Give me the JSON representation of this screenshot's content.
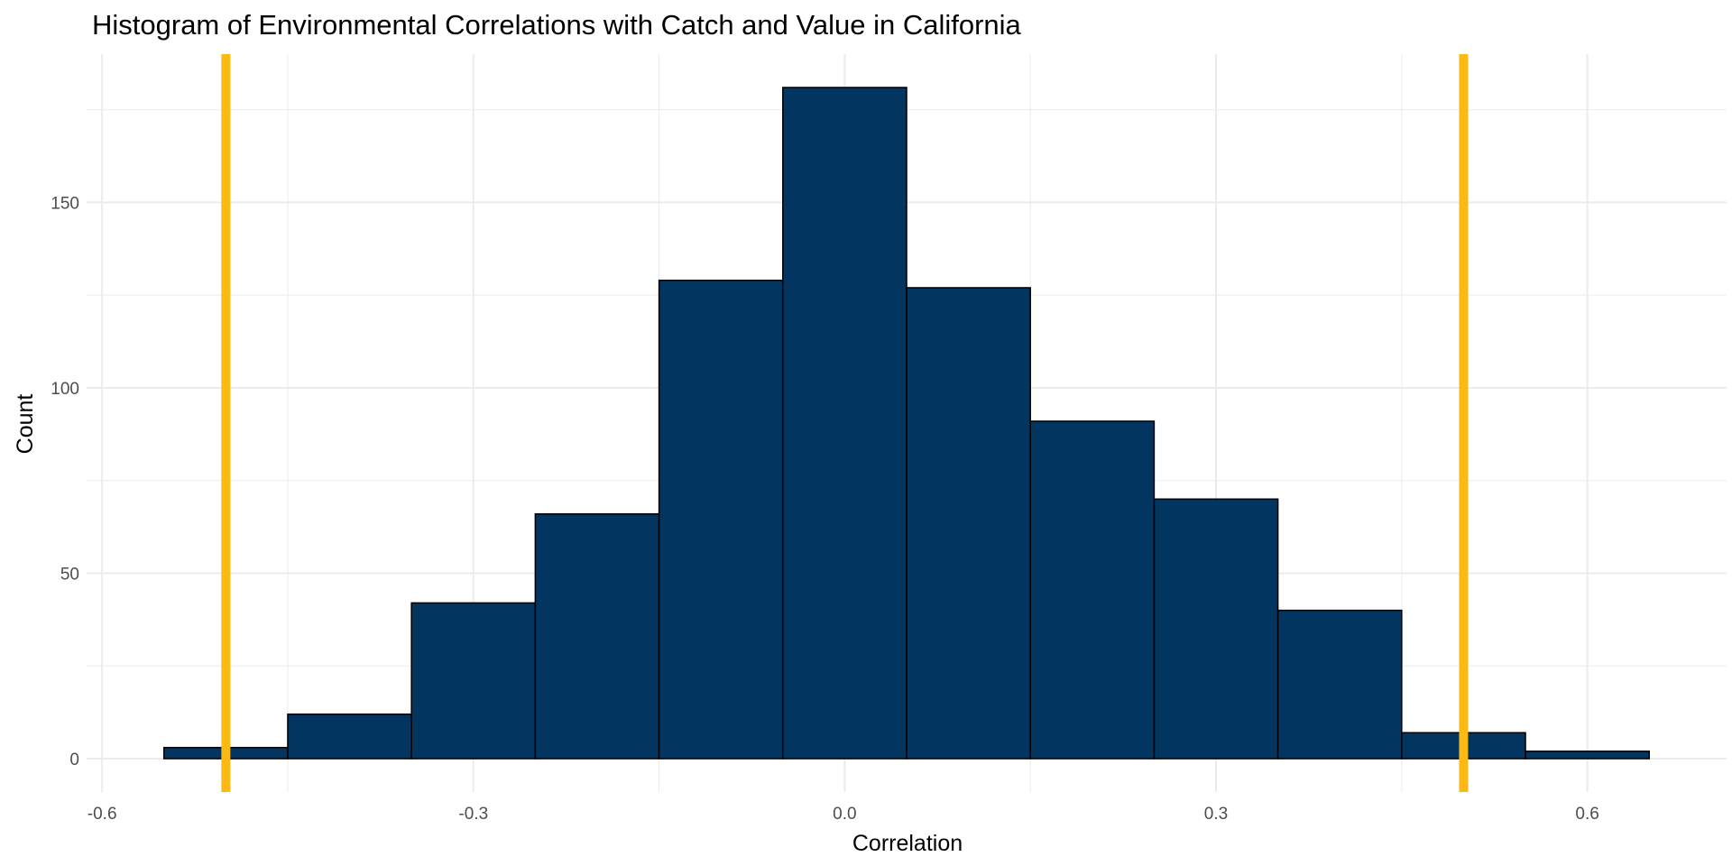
{
  "chart_data": {
    "type": "bar",
    "subtype": "histogram",
    "title": "Histogram of Environmental Correlations with Catch and Value in California",
    "xlabel": "Correlation",
    "ylabel": "Count",
    "bins": [
      {
        "x0": -0.55,
        "x1": -0.45,
        "count": 3
      },
      {
        "x0": -0.45,
        "x1": -0.35,
        "count": 12
      },
      {
        "x0": -0.35,
        "x1": -0.25,
        "count": 42
      },
      {
        "x0": -0.25,
        "x1": -0.15,
        "count": 66
      },
      {
        "x0": -0.15,
        "x1": -0.05,
        "count": 129
      },
      {
        "x0": -0.05,
        "x1": 0.05,
        "count": 181
      },
      {
        "x0": 0.05,
        "x1": 0.15,
        "count": 127
      },
      {
        "x0": 0.15,
        "x1": 0.25,
        "count": 91
      },
      {
        "x0": 0.25,
        "x1": 0.35,
        "count": 70
      },
      {
        "x0": 0.35,
        "x1": 0.45,
        "count": 40
      },
      {
        "x0": 0.45,
        "x1": 0.55,
        "count": 7
      },
      {
        "x0": 0.55,
        "x1": 0.65,
        "count": 2
      }
    ],
    "reference_lines": [
      {
        "axis": "x",
        "value": -0.5
      },
      {
        "axis": "x",
        "value": 0.5
      }
    ],
    "xlim": [
      -0.6125,
      0.7125
    ],
    "ylim": [
      -9,
      190
    ],
    "xticks": [
      -0.6,
      -0.3,
      0.0,
      0.3,
      0.6
    ],
    "xtick_labels": [
      "-0.6",
      "-0.3",
      "0.0",
      "0.3",
      "0.6"
    ],
    "yticks": [
      0,
      50,
      100,
      150
    ],
    "ytick_labels": [
      "0",
      "50",
      "100",
      "150"
    ],
    "x_minor_gridlines": [
      -0.45,
      -0.15,
      0.15,
      0.45
    ],
    "y_minor_gridlines": [
      25,
      75,
      125,
      175
    ],
    "grid": true,
    "legend": "none",
    "colors": {
      "bar_fill": "#02355F",
      "bar_border": "#000000",
      "reference_line": "#FDB913",
      "grid": "#EBEBEB"
    }
  }
}
